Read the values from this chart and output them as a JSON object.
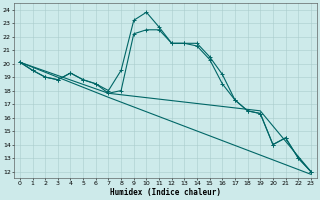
{
  "xlabel": "Humidex (Indice chaleur)",
  "bg_color": "#cdeaea",
  "grid_color": "#aacccc",
  "line_color": "#006666",
  "xlim": [
    -0.5,
    23.5
  ],
  "ylim": [
    11.5,
    24.5
  ],
  "xticks": [
    0,
    1,
    2,
    3,
    4,
    5,
    6,
    7,
    8,
    9,
    10,
    11,
    12,
    13,
    14,
    15,
    16,
    17,
    18,
    19,
    20,
    21,
    22,
    23
  ],
  "yticks": [
    12,
    13,
    14,
    15,
    16,
    17,
    18,
    19,
    20,
    21,
    22,
    23,
    24
  ],
  "line1_x": [
    0,
    1,
    2,
    3,
    4,
    5,
    6,
    7,
    8,
    9,
    10,
    11,
    12,
    13,
    14,
    15,
    16,
    17,
    18,
    19,
    20,
    21,
    22,
    23
  ],
  "line1_y": [
    20.1,
    19.5,
    19.0,
    18.8,
    19.3,
    18.8,
    18.5,
    18.0,
    19.5,
    23.2,
    23.8,
    22.7,
    21.5,
    21.5,
    21.5,
    20.5,
    19.2,
    17.3,
    16.5,
    16.3,
    14.0,
    14.5,
    13.0,
    12.0
  ],
  "line2_x": [
    0,
    1,
    2,
    3,
    4,
    5,
    6,
    7,
    8,
    9,
    10,
    11,
    12,
    13,
    14,
    15,
    16,
    17,
    18,
    19,
    20,
    21,
    22,
    23
  ],
  "line2_y": [
    20.1,
    19.5,
    19.0,
    18.8,
    19.3,
    18.8,
    18.5,
    17.8,
    18.0,
    22.2,
    22.5,
    22.5,
    21.5,
    21.5,
    21.3,
    20.3,
    18.5,
    17.3,
    16.5,
    16.3,
    14.0,
    14.5,
    13.0,
    12.0
  ],
  "line3_x": [
    0,
    7,
    19,
    23
  ],
  "line3_y": [
    20.1,
    17.8,
    16.5,
    12.0
  ],
  "line4_x": [
    0,
    7,
    23
  ],
  "line4_y": [
    20.1,
    17.5,
    11.8
  ]
}
